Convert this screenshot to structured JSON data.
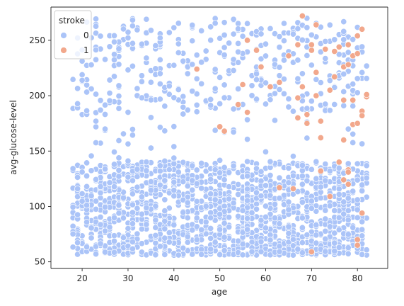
{
  "chart_data": {
    "type": "scatter",
    "title": "",
    "xlabel": "age",
    "ylabel": "avg-glucose-level",
    "xlim": [
      13.2,
      86.6
    ],
    "ylim": [
      44,
      280
    ],
    "xticks": [
      20,
      30,
      40,
      50,
      60,
      70,
      80
    ],
    "yticks": [
      50,
      100,
      150,
      200,
      250
    ],
    "grid": false,
    "legend": {
      "title": "stroke",
      "placement": "top-left",
      "entries": [
        "0",
        "1"
      ]
    },
    "series": [
      {
        "name": "0",
        "color": "#abc4f8",
        "clusters": [
          {
            "x_range": [
              18,
              82
            ],
            "y_range": [
              56,
              140
            ],
            "count": 1500
          },
          {
            "x_range": [
              18,
              82
            ],
            "y_range": [
              140,
              270
            ],
            "count": 420
          }
        ]
      },
      {
        "name": "1",
        "color": "#f2a88c",
        "points": [
          [
            45,
            224
          ],
          [
            50,
            172
          ],
          [
            51,
            168
          ],
          [
            54,
            192
          ],
          [
            55,
            210
          ],
          [
            56,
            250
          ],
          [
            56,
            185
          ],
          [
            58,
            241
          ],
          [
            59,
            226
          ],
          [
            61,
            208
          ],
          [
            63,
            117
          ],
          [
            63,
            212
          ],
          [
            65,
            236
          ],
          [
            66,
            116
          ],
          [
            67,
            180
          ],
          [
            67,
            198
          ],
          [
            67,
            246
          ],
          [
            68,
            272
          ],
          [
            68,
            208
          ],
          [
            69,
            183
          ],
          [
            70,
            241
          ],
          [
            70,
            246
          ],
          [
            70,
            59
          ],
          [
            71,
            264
          ],
          [
            71,
            221
          ],
          [
            71,
            200
          ],
          [
            72,
            132
          ],
          [
            72,
            177
          ],
          [
            72,
            162
          ],
          [
            73,
            242
          ],
          [
            74,
            109
          ],
          [
            74,
            205
          ],
          [
            75,
            217
          ],
          [
            76,
            244
          ],
          [
            76,
            140
          ],
          [
            77,
            226
          ],
          [
            77,
            196
          ],
          [
            77,
            160
          ],
          [
            77,
            124
          ],
          [
            78,
            228
          ],
          [
            78,
            133
          ],
          [
            78,
            131
          ],
          [
            78,
            120
          ],
          [
            79,
            174
          ],
          [
            79,
            196
          ],
          [
            79,
            236
          ],
          [
            80,
            254
          ],
          [
            80,
            238
          ],
          [
            80,
            175
          ],
          [
            80,
            70
          ],
          [
            80,
            65
          ],
          [
            81,
            260
          ],
          [
            81,
            186
          ],
          [
            81,
            94
          ],
          [
            81,
            182
          ],
          [
            82,
            199
          ],
          [
            82,
            201
          ],
          [
            78,
            246
          ],
          [
            69,
            175
          ],
          [
            75,
            240
          ]
        ]
      }
    ]
  }
}
